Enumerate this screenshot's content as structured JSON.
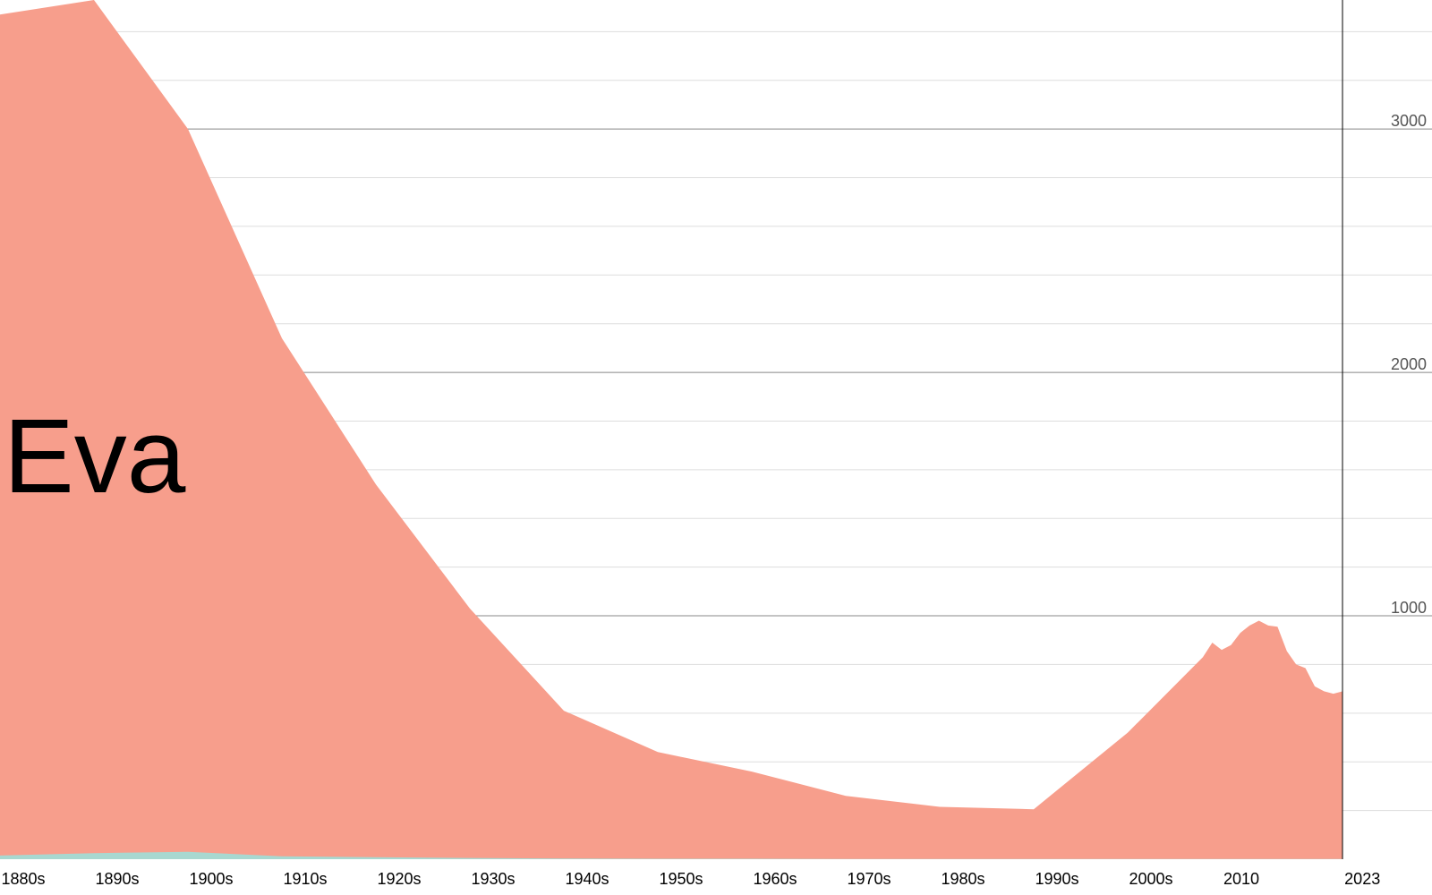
{
  "chart_data": {
    "type": "area",
    "name_label": "Eva",
    "ylim": [
      0,
      3530
    ],
    "y_major_ticks": [
      1000,
      2000,
      3000
    ],
    "y_minor_step": 200,
    "x_tick_labels": [
      "1880s",
      "1890s",
      "1900s",
      "1910s",
      "1920s",
      "1930s",
      "1940s",
      "1950s",
      "1960s",
      "1970s",
      "1980s",
      "1990s",
      "2000s",
      "2010",
      "2023"
    ],
    "grid": true,
    "series": [
      {
        "color": "#f79e8c",
        "x": [
          1880,
          1890,
          1900,
          1910,
          1920,
          1930,
          1940,
          1950,
          1960,
          1970,
          1980,
          1990,
          2000,
          2008,
          2009,
          2010,
          2011,
          2012,
          2013,
          2014,
          2015,
          2016,
          2017,
          2018,
          2019,
          2020,
          2021,
          2022,
          2023
        ],
        "values": [
          3470,
          3530,
          3000,
          2140,
          1540,
          1030,
          610,
          440,
          360,
          260,
          215,
          205,
          520,
          830,
          890,
          860,
          880,
          930,
          960,
          980,
          960,
          955,
          855,
          800,
          785,
          710,
          690,
          680,
          690
        ]
      },
      {
        "color": "#a8d8d0",
        "x": [
          1880,
          1890,
          1900,
          1910,
          1920,
          1930,
          1940,
          1950,
          1960,
          1970,
          1980,
          1990,
          2000,
          2010,
          2023
        ],
        "values": [
          15,
          25,
          30,
          12,
          8,
          5,
          3,
          2,
          2,
          1,
          1,
          1,
          1,
          1,
          1
        ]
      }
    ]
  }
}
